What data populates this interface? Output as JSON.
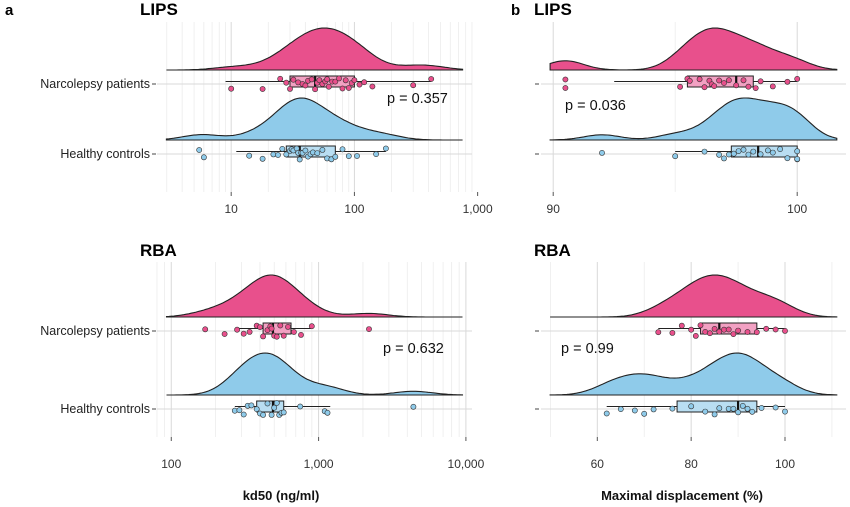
{
  "colors": {
    "patients": "#e8508c",
    "patients_box": "#f2a1c3",
    "controls": "#8fcbea",
    "controls_box": "#b9def2"
  },
  "chart_data": [
    {
      "panel_label": "a",
      "title": "LIPS",
      "type": "raincloud",
      "xscale": "log",
      "xlim": [
        2.5,
        900
      ],
      "xticks": [
        10,
        100,
        1000
      ],
      "xtick_labels": [
        "10",
        "100",
        "1,000"
      ],
      "categories": [
        "Narcolepsy patients",
        "Healthy controls"
      ],
      "p_label": "p =  0.357",
      "series": [
        {
          "name": "Narcolepsy patients",
          "box": [
            9,
            30,
            48,
            100,
            420
          ],
          "points": [
            10,
            18,
            25,
            28,
            30,
            32,
            35,
            38,
            40,
            42,
            45,
            48,
            50,
            52,
            55,
            58,
            60,
            62,
            66,
            70,
            75,
            80,
            85,
            90,
            95,
            100,
            110,
            120,
            140,
            300,
            420
          ]
        },
        {
          "name": "Healthy controls",
          "box": [
            11,
            28,
            36,
            70,
            180
          ],
          "points": [
            5.5,
            6,
            14,
            18,
            22,
            24,
            26,
            28,
            30,
            31,
            32,
            34,
            35,
            36,
            37,
            38,
            40,
            42,
            44,
            46,
            50,
            55,
            60,
            65,
            70,
            80,
            90,
            105,
            150,
            180
          ]
        }
      ]
    },
    {
      "panel_label": "b",
      "title": "LIPS",
      "type": "raincloud",
      "xscale": "linear",
      "xlim": [
        89.5,
        102
      ],
      "xticks": [
        90,
        100
      ],
      "xtick_labels": [
        "90",
        "100"
      ],
      "categories": [
        "Narcolepsy patients",
        "Healthy controls"
      ],
      "p_label": "p =  0.036",
      "series": [
        {
          "name": "Narcolepsy patients",
          "box": [
            92.5,
            95.5,
            97.5,
            98.2,
            100
          ],
          "points": [
            90.5,
            90.5,
            95.2,
            95.5,
            95.6,
            96,
            96.2,
            96.4,
            96.5,
            96.6,
            96.8,
            97,
            97.2,
            97.5,
            97.8,
            98,
            98.3,
            98.5,
            99,
            99.6,
            100
          ]
        },
        {
          "name": "Healthy controls",
          "box": [
            95,
            97.3,
            98.4,
            100,
            100
          ],
          "points": [
            92,
            95,
            96.2,
            96.8,
            97,
            97.2,
            97.4,
            97.6,
            97.8,
            98,
            98.2,
            98.5,
            98.8,
            99,
            99.3,
            99.6,
            100,
            100,
            100
          ]
        }
      ]
    },
    {
      "panel_label": "",
      "title": "RBA",
      "type": "raincloud",
      "xscale": "log",
      "xlim": [
        80,
        11000
      ],
      "xticks": [
        100,
        1000,
        10000
      ],
      "xtick_labels": [
        "100",
        "1,000",
        "10,000"
      ],
      "categories": [
        "Narcolepsy patients",
        "Healthy controls"
      ],
      "p_label": "p =  0.632",
      "series": [
        {
          "name": "Narcolepsy patients",
          "box": [
            270,
            420,
            490,
            650,
            900
          ],
          "points": [
            170,
            230,
            280,
            310,
            340,
            380,
            400,
            420,
            450,
            470,
            480,
            500,
            520,
            550,
            580,
            620,
            680,
            760,
            900,
            2200
          ]
        },
        {
          "name": "Healthy controls",
          "box": [
            270,
            380,
            490,
            580,
            1200
          ],
          "points": [
            270,
            290,
            310,
            330,
            350,
            380,
            400,
            420,
            450,
            480,
            500,
            520,
            540,
            560,
            580,
            750,
            1100,
            1150,
            4400
          ]
        }
      ]
    },
    {
      "panel_label": "",
      "title": "RBA",
      "type": "raincloud",
      "xscale": "linear",
      "xlim": [
        48,
        113
      ],
      "xticks": [
        60,
        80,
        100
      ],
      "xtick_labels": [
        "60",
        "80",
        "100"
      ],
      "categories": [
        "Narcolepsy patients",
        "Healthy controls"
      ],
      "p_label": "p =  0.99",
      "series": [
        {
          "name": "Narcolepsy patients",
          "box": [
            73,
            82,
            86,
            94,
            100
          ],
          "points": [
            73,
            76,
            78,
            80,
            81,
            82,
            83,
            84,
            85,
            86,
            87,
            88,
            89,
            90,
            92,
            94,
            96,
            98,
            100
          ]
        },
        {
          "name": "Healthy controls",
          "box": [
            62,
            77,
            90,
            94,
            100
          ],
          "points": [
            62,
            65,
            68,
            70,
            72,
            76,
            80,
            83,
            85,
            86,
            88,
            89,
            90,
            91,
            92,
            93,
            95,
            98,
            100
          ]
        }
      ]
    }
  ],
  "x_labels": {
    "left": "kd50 (ng/ml)",
    "right": "Maximal displacement (%)"
  }
}
